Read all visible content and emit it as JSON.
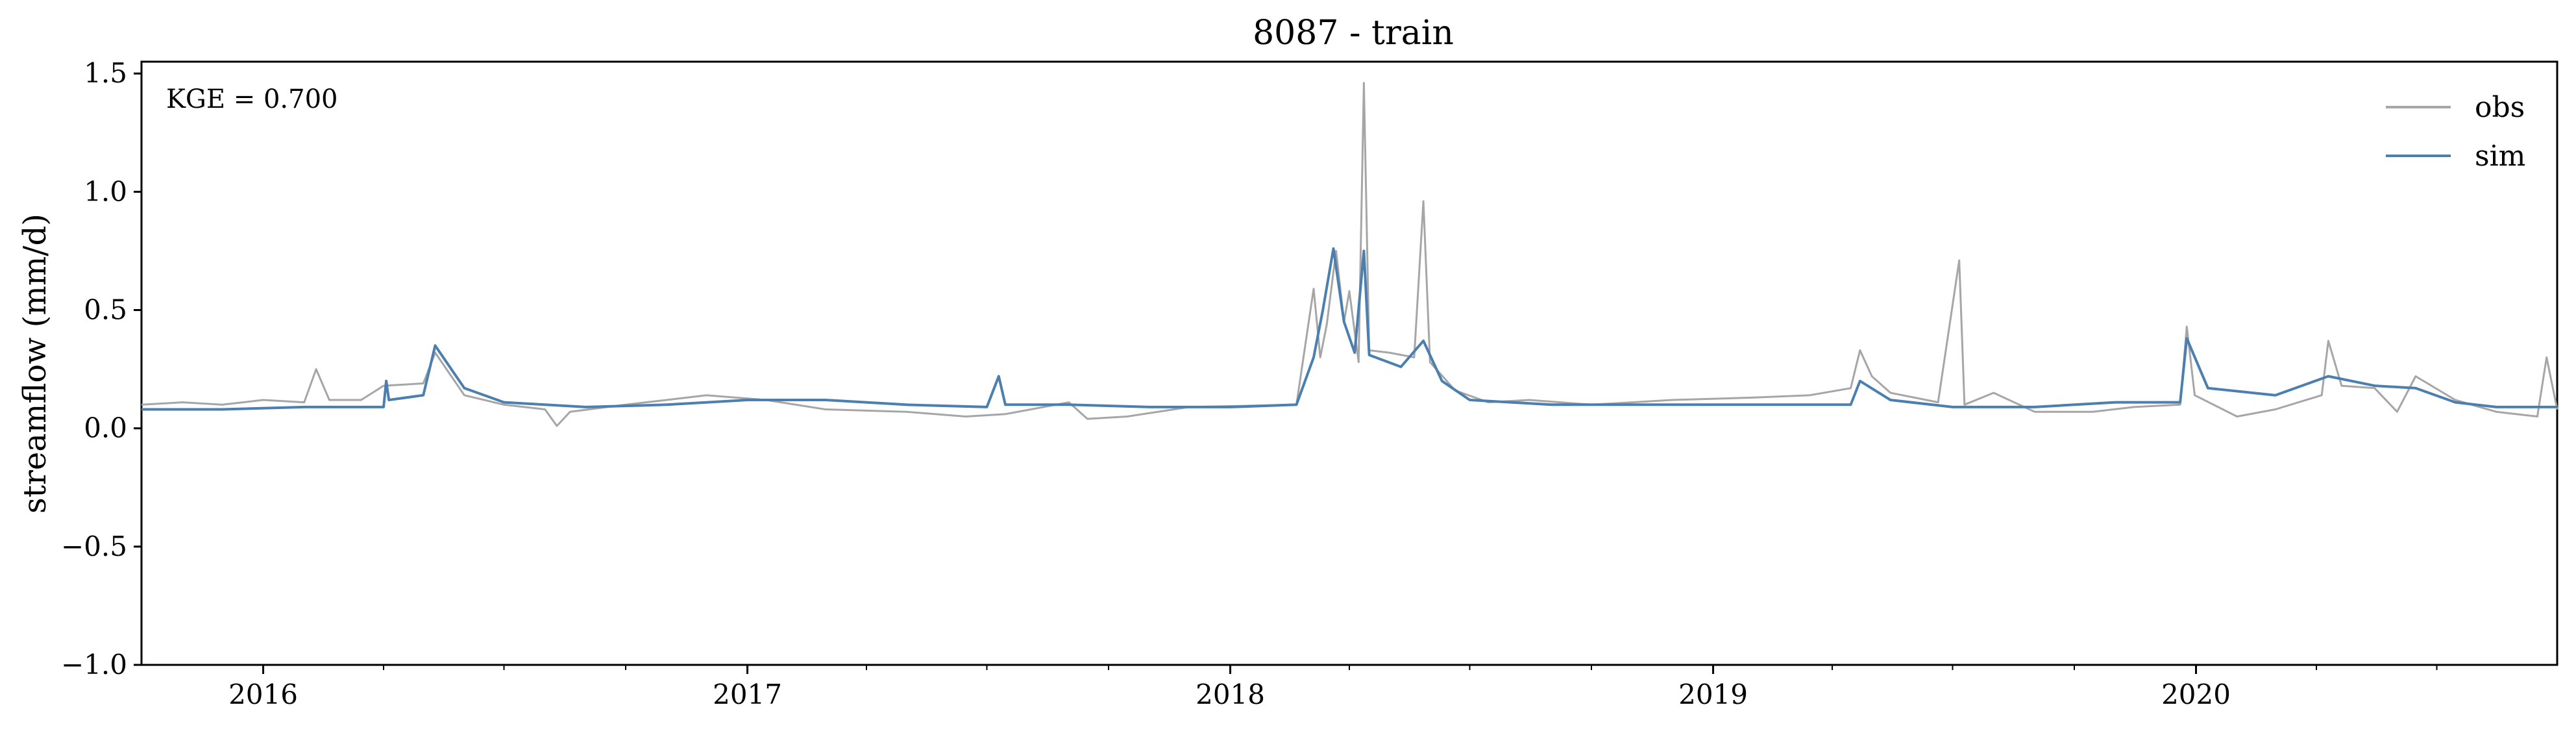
{
  "chart_data": {
    "type": "line",
    "title": "8087 - train",
    "xlabel": "",
    "ylabel": "streamflow (mm/d)",
    "ylim": [
      -1.0,
      1.55
    ],
    "xlim": [
      "2015-10-01",
      "2020-09-30"
    ],
    "yticks": [
      -1.0,
      -0.5,
      0.0,
      0.5,
      1.0,
      1.5
    ],
    "ytick_labels": [
      "−1.0",
      "−0.5",
      "0.0",
      "0.5",
      "1.0",
      "1.5"
    ],
    "xticks": [
      "2016-01-01",
      "2017-01-01",
      "2018-01-01",
      "2019-01-01",
      "2020-01-01"
    ],
    "xtick_labels": [
      "2016",
      "2017",
      "2018",
      "2019",
      "2020"
    ],
    "grid": false,
    "legend_position": "top-right",
    "annotation": "KGE = 0.700",
    "series": [
      {
        "name": "obs",
        "color": "#a6a6a6",
        "points": [
          [
            "2015-10-01",
            0.1
          ],
          [
            "2015-11-01",
            0.11
          ],
          [
            "2015-12-01",
            0.1
          ],
          [
            "2016-01-01",
            0.12
          ],
          [
            "2016-02-01",
            0.11
          ],
          [
            "2016-02-10",
            0.25
          ],
          [
            "2016-02-20",
            0.12
          ],
          [
            "2016-03-15",
            0.12
          ],
          [
            "2016-04-01",
            0.18
          ],
          [
            "2016-05-01",
            0.19
          ],
          [
            "2016-05-10",
            0.32
          ],
          [
            "2016-06-01",
            0.14
          ],
          [
            "2016-07-01",
            0.1
          ],
          [
            "2016-08-01",
            0.08
          ],
          [
            "2016-08-10",
            0.01
          ],
          [
            "2016-08-20",
            0.07
          ],
          [
            "2016-10-01",
            0.1
          ],
          [
            "2016-11-01",
            0.12
          ],
          [
            "2016-12-01",
            0.14
          ],
          [
            "2017-01-15",
            0.12
          ],
          [
            "2017-03-01",
            0.08
          ],
          [
            "2017-05-01",
            0.07
          ],
          [
            "2017-06-15",
            0.05
          ],
          [
            "2017-07-15",
            0.06
          ],
          [
            "2017-09-01",
            0.11
          ],
          [
            "2017-09-15",
            0.04
          ],
          [
            "2017-10-15",
            0.05
          ],
          [
            "2017-12-01",
            0.09
          ],
          [
            "2018-02-20",
            0.1
          ],
          [
            "2018-03-05",
            0.59
          ],
          [
            "2018-03-10",
            0.3
          ],
          [
            "2018-03-15",
            0.44
          ],
          [
            "2018-03-22",
            0.75
          ],
          [
            "2018-03-28",
            0.45
          ],
          [
            "2018-04-01",
            0.58
          ],
          [
            "2018-04-08",
            0.28
          ],
          [
            "2018-04-12",
            1.46
          ],
          [
            "2018-04-16",
            0.33
          ],
          [
            "2018-05-01",
            0.32
          ],
          [
            "2018-05-20",
            0.3
          ],
          [
            "2018-05-27",
            0.96
          ],
          [
            "2018-06-01",
            0.28
          ],
          [
            "2018-06-20",
            0.16
          ],
          [
            "2018-07-15",
            0.11
          ],
          [
            "2018-08-15",
            0.12
          ],
          [
            "2018-10-01",
            0.1
          ],
          [
            "2018-12-01",
            0.12
          ],
          [
            "2019-02-01",
            0.13
          ],
          [
            "2019-03-15",
            0.14
          ],
          [
            "2019-04-15",
            0.17
          ],
          [
            "2019-04-22",
            0.33
          ],
          [
            "2019-05-01",
            0.22
          ],
          [
            "2019-05-15",
            0.15
          ],
          [
            "2019-06-20",
            0.11
          ],
          [
            "2019-07-06",
            0.71
          ],
          [
            "2019-07-10",
            0.1
          ],
          [
            "2019-08-01",
            0.15
          ],
          [
            "2019-09-01",
            0.07
          ],
          [
            "2019-10-15",
            0.07
          ],
          [
            "2019-11-15",
            0.09
          ],
          [
            "2019-12-20",
            0.1
          ],
          [
            "2019-12-25",
            0.43
          ],
          [
            "2019-12-31",
            0.14
          ],
          [
            "2020-02-01",
            0.05
          ],
          [
            "2020-03-01",
            0.08
          ],
          [
            "2020-04-05",
            0.14
          ],
          [
            "2020-04-10",
            0.37
          ],
          [
            "2020-04-20",
            0.18
          ],
          [
            "2020-05-15",
            0.17
          ],
          [
            "2020-06-01",
            0.07
          ],
          [
            "2020-06-15",
            0.22
          ],
          [
            "2020-07-15",
            0.12
          ],
          [
            "2020-08-15",
            0.07
          ],
          [
            "2020-09-15",
            0.05
          ],
          [
            "2020-09-22",
            0.3
          ],
          [
            "2020-09-30",
            0.08
          ]
        ]
      },
      {
        "name": "sim",
        "color": "#4a7fb0",
        "points": [
          [
            "2015-10-01",
            0.08
          ],
          [
            "2015-12-01",
            0.08
          ],
          [
            "2016-02-01",
            0.09
          ],
          [
            "2016-04-01",
            0.09
          ],
          [
            "2016-04-03",
            0.2
          ],
          [
            "2016-04-05",
            0.12
          ],
          [
            "2016-05-01",
            0.14
          ],
          [
            "2016-05-10",
            0.35
          ],
          [
            "2016-06-01",
            0.17
          ],
          [
            "2016-07-01",
            0.11
          ],
          [
            "2016-09-01",
            0.09
          ],
          [
            "2016-11-01",
            0.1
          ],
          [
            "2017-01-01",
            0.12
          ],
          [
            "2017-03-01",
            0.12
          ],
          [
            "2017-05-01",
            0.1
          ],
          [
            "2017-07-01",
            0.09
          ],
          [
            "2017-07-10",
            0.22
          ],
          [
            "2017-07-15",
            0.1
          ],
          [
            "2017-09-01",
            0.1
          ],
          [
            "2017-11-01",
            0.09
          ],
          [
            "2018-01-01",
            0.09
          ],
          [
            "2018-02-20",
            0.1
          ],
          [
            "2018-03-05",
            0.3
          ],
          [
            "2018-03-12",
            0.5
          ],
          [
            "2018-03-20",
            0.76
          ],
          [
            "2018-03-28",
            0.45
          ],
          [
            "2018-04-05",
            0.32
          ],
          [
            "2018-04-12",
            0.75
          ],
          [
            "2018-04-16",
            0.31
          ],
          [
            "2018-05-10",
            0.26
          ],
          [
            "2018-05-27",
            0.37
          ],
          [
            "2018-06-10",
            0.2
          ],
          [
            "2018-07-01",
            0.12
          ],
          [
            "2018-09-01",
            0.1
          ],
          [
            "2018-12-01",
            0.1
          ],
          [
            "2019-03-01",
            0.1
          ],
          [
            "2019-04-15",
            0.1
          ],
          [
            "2019-04-22",
            0.2
          ],
          [
            "2019-05-15",
            0.12
          ],
          [
            "2019-07-01",
            0.09
          ],
          [
            "2019-09-01",
            0.09
          ],
          [
            "2019-11-01",
            0.11
          ],
          [
            "2019-12-20",
            0.11
          ],
          [
            "2019-12-25",
            0.38
          ],
          [
            "2020-01-10",
            0.17
          ],
          [
            "2020-03-01",
            0.14
          ],
          [
            "2020-04-10",
            0.22
          ],
          [
            "2020-05-15",
            0.18
          ],
          [
            "2020-06-15",
            0.17
          ],
          [
            "2020-07-15",
            0.11
          ],
          [
            "2020-08-15",
            0.09
          ],
          [
            "2020-09-30",
            0.09
          ]
        ]
      }
    ]
  }
}
